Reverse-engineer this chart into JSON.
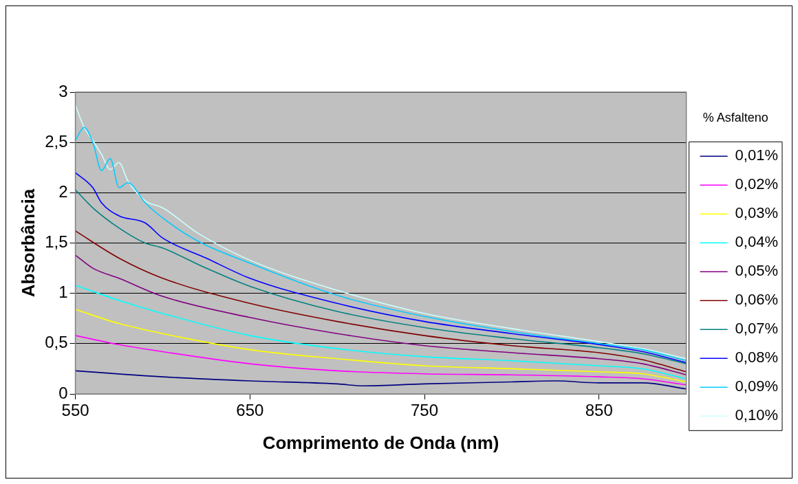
{
  "chart_data": {
    "type": "line",
    "xlabel": "Comprimento de Onda (nm)",
    "ylabel": "Absorbância",
    "legend_title": "% Asfalteno",
    "xlim": [
      550,
      900
    ],
    "xticks": [
      550,
      650,
      750,
      850
    ],
    "ylim": [
      0,
      3
    ],
    "yticks": [
      {
        "value": 0,
        "label": "0"
      },
      {
        "value": 0.5,
        "label": "0,5"
      },
      {
        "value": 1,
        "label": "1"
      },
      {
        "value": 1.5,
        "label": "1,5"
      },
      {
        "value": 2,
        "label": "2"
      },
      {
        "value": 2.5,
        "label": "2,5"
      },
      {
        "value": 3,
        "label": "3"
      }
    ],
    "grid": "y",
    "legend": "right",
    "marker": "none",
    "line_style": "solid",
    "series": [
      {
        "name": "0,01%",
        "color": "#000080",
        "x": [
          550,
          600,
          650,
          700,
          715,
          750,
          800,
          825,
          850,
          875,
          900
        ],
        "values": [
          0.23,
          0.17,
          0.13,
          0.1,
          0.08,
          0.1,
          0.12,
          0.13,
          0.11,
          0.11,
          0.05
        ]
      },
      {
        "name": "0,02%",
        "color": "#ff00ff",
        "x": [
          550,
          575,
          600,
          650,
          700,
          750,
          800,
          850,
          875,
          900
        ],
        "values": [
          0.58,
          0.49,
          0.42,
          0.3,
          0.23,
          0.2,
          0.19,
          0.17,
          0.15,
          0.09
        ]
      },
      {
        "name": "0,03%",
        "color": "#ffff00",
        "x": [
          550,
          575,
          600,
          650,
          700,
          750,
          800,
          850,
          875,
          900
        ],
        "values": [
          0.84,
          0.7,
          0.6,
          0.44,
          0.35,
          0.28,
          0.25,
          0.22,
          0.2,
          0.12
        ]
      },
      {
        "name": "0,04%",
        "color": "#00ffff",
        "x": [
          550,
          575,
          600,
          650,
          700,
          750,
          800,
          850,
          875,
          900
        ],
        "values": [
          1.08,
          0.93,
          0.8,
          0.58,
          0.45,
          0.37,
          0.33,
          0.28,
          0.25,
          0.15
        ]
      },
      {
        "name": "0,05%",
        "color": "#800080",
        "x": [
          550,
          560,
          575,
          600,
          650,
          700,
          750,
          800,
          850,
          875,
          900
        ],
        "values": [
          1.38,
          1.25,
          1.15,
          0.97,
          0.76,
          0.6,
          0.48,
          0.41,
          0.35,
          0.3,
          0.19
        ]
      },
      {
        "name": "0,06%",
        "color": "#800000",
        "x": [
          550,
          575,
          600,
          650,
          700,
          750,
          800,
          850,
          875,
          900
        ],
        "values": [
          1.62,
          1.35,
          1.15,
          0.9,
          0.72,
          0.58,
          0.48,
          0.41,
          0.34,
          0.22
        ]
      },
      {
        "name": "0,07%",
        "color": "#008080",
        "x": [
          550,
          560,
          575,
          590,
          600,
          625,
          650,
          700,
          750,
          800,
          850,
          875,
          900
        ],
        "values": [
          2.03,
          1.85,
          1.65,
          1.5,
          1.45,
          1.25,
          1.07,
          0.82,
          0.66,
          0.55,
          0.46,
          0.4,
          0.3
        ]
      },
      {
        "name": "0,08%",
        "color": "#0000ff",
        "x": [
          550,
          560,
          565,
          575,
          590,
          600,
          625,
          650,
          700,
          750,
          800,
          850,
          875,
          900
        ],
        "values": [
          2.2,
          2.05,
          1.9,
          1.77,
          1.7,
          1.55,
          1.35,
          1.15,
          0.9,
          0.72,
          0.6,
          0.49,
          0.42,
          0.31
        ]
      },
      {
        "name": "0,09%",
        "color": "#00ccff",
        "x": [
          550,
          555,
          560,
          565,
          570,
          575,
          580,
          590,
          600,
          620,
          650,
          700,
          750,
          800,
          850,
          875,
          900
        ],
        "values": [
          2.52,
          2.65,
          2.5,
          2.22,
          2.34,
          2.05,
          2.1,
          1.9,
          1.75,
          1.52,
          1.3,
          0.98,
          0.77,
          0.62,
          0.5,
          0.44,
          0.33
        ]
      },
      {
        "name": "0,10%",
        "color": "#ccffff",
        "x": [
          550,
          555,
          560,
          565,
          570,
          575,
          580,
          590,
          600,
          620,
          650,
          700,
          750,
          800,
          850,
          875,
          900
        ],
        "values": [
          2.87,
          2.65,
          2.52,
          2.38,
          2.23,
          2.3,
          2.12,
          1.92,
          1.85,
          1.6,
          1.33,
          1.03,
          0.8,
          0.65,
          0.52,
          0.45,
          0.35
        ]
      }
    ]
  }
}
